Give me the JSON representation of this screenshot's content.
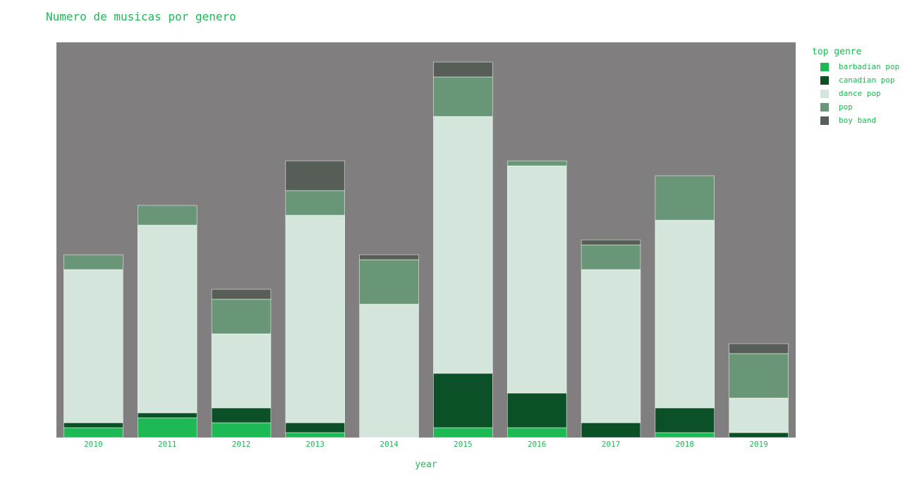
{
  "chart_data": {
    "type": "bar",
    "barmode": "stack",
    "title": "Numero de musicas por genero",
    "xlabel": "year",
    "ylabel": "",
    "categories": [
      "2010",
      "2011",
      "2012",
      "2013",
      "2014",
      "2015",
      "2016",
      "2017",
      "2018",
      "2019"
    ],
    "ylim": [
      0,
      80
    ],
    "grid": false,
    "legend_title": "top genre",
    "legend_position": "top-right",
    "plot_background": "#807e7e",
    "series": [
      {
        "name": "barbadian pop",
        "color": "#1db954",
        "values": [
          2,
          4,
          3,
          1,
          0,
          2,
          2,
          0,
          1,
          0
        ]
      },
      {
        "name": "canadian pop",
        "color": "#0b5027",
        "values": [
          1,
          1,
          3,
          2,
          0,
          11,
          7,
          3,
          5,
          1
        ]
      },
      {
        "name": "dance pop",
        "color": "#d4e6db",
        "values": [
          31,
          38,
          15,
          42,
          27,
          52,
          46,
          31,
          38,
          7
        ]
      },
      {
        "name": "pop",
        "color": "#689677",
        "values": [
          3,
          4,
          7,
          5,
          9,
          8,
          1,
          5,
          9,
          9
        ]
      },
      {
        "name": "boy band",
        "color": "#565e57",
        "values": [
          0,
          0,
          2,
          6,
          1,
          3,
          0,
          1,
          0,
          2
        ]
      }
    ]
  }
}
